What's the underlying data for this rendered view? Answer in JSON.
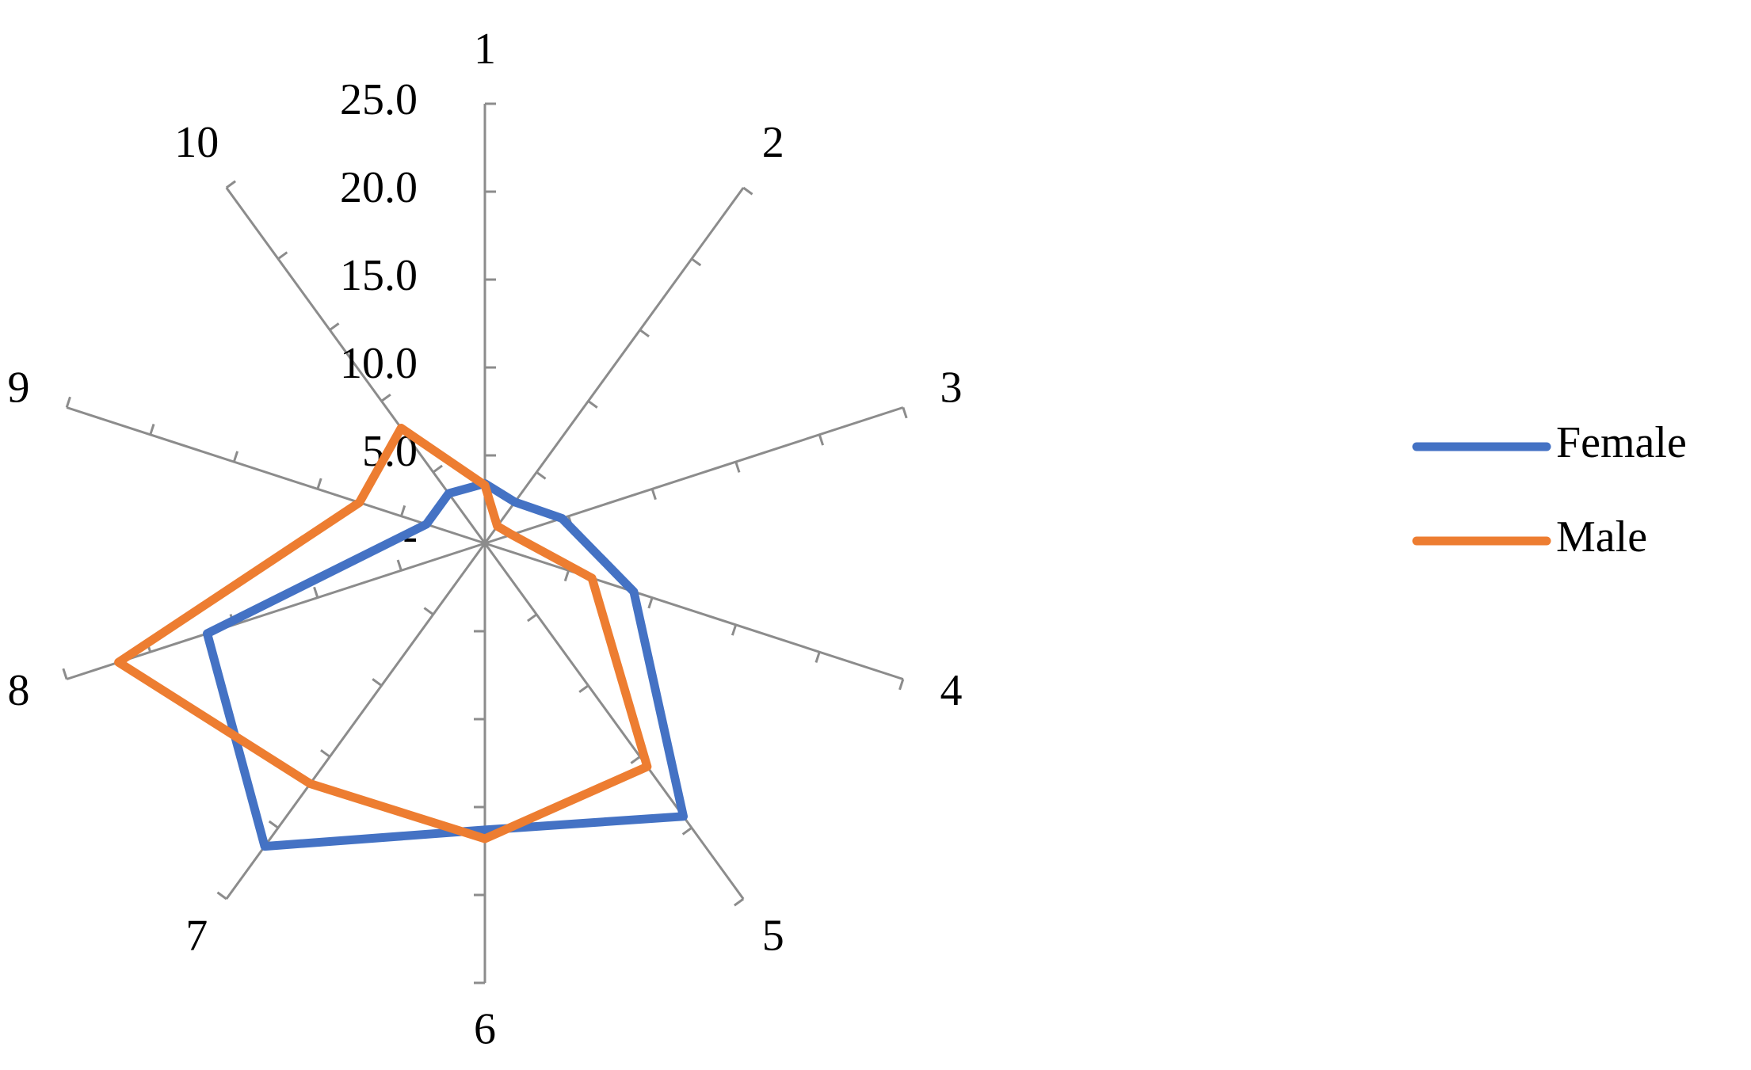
{
  "chart_data": {
    "type": "radar",
    "categories": [
      "1",
      "2",
      "3",
      "4",
      "5",
      "6",
      "7",
      "8",
      "9",
      "10"
    ],
    "series": [
      {
        "name": "Female",
        "color": "#4472c4",
        "values": [
          3.4,
          2.9,
          4.6,
          8.9,
          19.2,
          16.3,
          21.3,
          16.6,
          3.5,
          3.5
        ]
      },
      {
        "name": "Male",
        "color": "#ed7d31",
        "values": [
          3.3,
          1.2,
          1.6,
          6.4,
          15.7,
          16.8,
          16.9,
          21.9,
          7.5,
          8.1
        ]
      }
    ],
    "ylim": [
      0,
      25
    ],
    "yticks": [
      {
        "value": 0,
        "label": "-"
      },
      {
        "value": 5,
        "label": "5.0"
      },
      {
        "value": 10,
        "label": "10.0"
      },
      {
        "value": 15,
        "label": "15.0"
      },
      {
        "value": 20,
        "label": "20.0"
      },
      {
        "value": 25,
        "label": "25.0"
      }
    ],
    "legend": "right"
  }
}
